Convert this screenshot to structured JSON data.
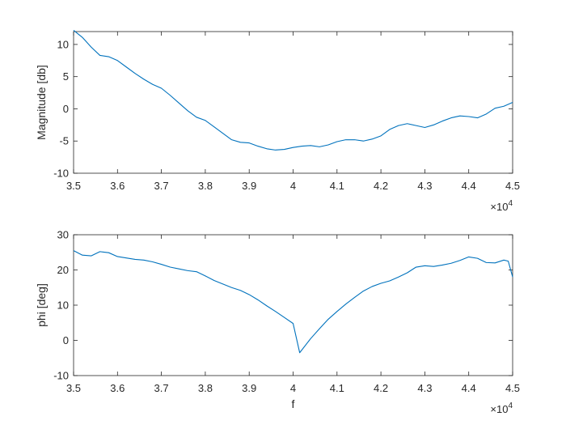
{
  "figure": {
    "background": "#ffffff",
    "axis_color": "#262626",
    "line_color": "#0072BD"
  },
  "chart_data": [
    {
      "type": "line",
      "xlabel": "",
      "ylabel": "Magnitude [db]",
      "xlim": [
        35000,
        45000
      ],
      "ylim": [
        -10,
        12
      ],
      "xticks": [
        35000,
        36000,
        37000,
        38000,
        39000,
        40000,
        41000,
        42000,
        43000,
        44000,
        45000
      ],
      "xtick_labels": [
        "3.5",
        "3.6",
        "3.7",
        "3.8",
        "3.9",
        "4",
        "4.1",
        "4.2",
        "4.3",
        "4.4",
        "4.5"
      ],
      "yticks": [
        -10,
        -5,
        0,
        5,
        10
      ],
      "ytick_labels": [
        "-10",
        "-5",
        "0",
        "5",
        "10"
      ],
      "x_exponent_label": "×10",
      "x_exponent_power": "4",
      "grid": false,
      "series": [
        {
          "x": [
            35000,
            35200,
            35400,
            35600,
            35800,
            36000,
            36200,
            36400,
            36600,
            36800,
            37000,
            37200,
            37400,
            37600,
            37800,
            38000,
            38200,
            38400,
            38600,
            38800,
            39000,
            39200,
            39400,
            39600,
            39800,
            40000,
            40200,
            40400,
            40600,
            40800,
            41000,
            41200,
            41400,
            41600,
            41800,
            42000,
            42200,
            42400,
            42600,
            42800,
            43000,
            43200,
            43400,
            43600,
            43800,
            44000,
            44200,
            44400,
            44600,
            44800,
            45000
          ],
          "values": [
            12.2,
            11.1,
            9.6,
            8.3,
            8.1,
            7.5,
            6.5,
            5.5,
            4.6,
            3.8,
            3.2,
            2.1,
            0.9,
            -0.3,
            -1.3,
            -1.8,
            -2.8,
            -3.8,
            -4.8,
            -5.2,
            -5.3,
            -5.8,
            -6.2,
            -6.4,
            -6.3,
            -6.0,
            -5.8,
            -5.7,
            -5.9,
            -5.6,
            -5.1,
            -4.8,
            -4.8,
            -5.0,
            -4.7,
            -4.2,
            -3.2,
            -2.6,
            -2.3,
            -2.6,
            -2.9,
            -2.5,
            -1.9,
            -1.4,
            -1.1,
            -1.2,
            -1.4,
            -0.8,
            0.1,
            0.4,
            1.0
          ]
        }
      ]
    },
    {
      "type": "line",
      "xlabel": "f",
      "ylabel": "phi [deg]",
      "xlim": [
        35000,
        45000
      ],
      "ylim": [
        -10,
        30
      ],
      "xticks": [
        35000,
        36000,
        37000,
        38000,
        39000,
        40000,
        41000,
        42000,
        43000,
        44000,
        45000
      ],
      "xtick_labels": [
        "3.5",
        "3.6",
        "3.7",
        "3.8",
        "3.9",
        "4",
        "4.1",
        "4.2",
        "4.3",
        "4.4",
        "4.5"
      ],
      "yticks": [
        -10,
        0,
        10,
        20,
        30
      ],
      "ytick_labels": [
        "-10",
        "0",
        "10",
        "20",
        "30"
      ],
      "x_exponent_label": "×10",
      "x_exponent_power": "4",
      "grid": false,
      "series": [
        {
          "x": [
            35000,
            35200,
            35400,
            35600,
            35800,
            36000,
            36200,
            36400,
            36600,
            36800,
            37000,
            37200,
            37400,
            37600,
            37800,
            38000,
            38200,
            38400,
            38600,
            38800,
            39000,
            39200,
            39400,
            39600,
            39800,
            40000,
            40150,
            40400,
            40600,
            40800,
            41000,
            41200,
            41400,
            41600,
            41800,
            42000,
            42200,
            42400,
            42600,
            42800,
            43000,
            43200,
            43400,
            43600,
            43800,
            44000,
            44200,
            44400,
            44600,
            44800,
            44900,
            45000
          ],
          "values": [
            25.5,
            24.2,
            24.0,
            25.2,
            24.9,
            23.8,
            23.4,
            23.0,
            22.8,
            22.3,
            21.6,
            20.8,
            20.3,
            19.8,
            19.5,
            18.3,
            17.0,
            16.0,
            15.0,
            14.2,
            13.0,
            11.5,
            9.8,
            8.2,
            6.5,
            4.8,
            -3.5,
            0.5,
            3.3,
            6.0,
            8.2,
            10.3,
            12.2,
            14.0,
            15.3,
            16.2,
            16.9,
            18.0,
            19.2,
            20.8,
            21.2,
            21.0,
            21.4,
            21.9,
            22.7,
            23.7,
            23.3,
            22.1,
            22.0,
            22.8,
            22.5,
            18.0
          ]
        }
      ]
    }
  ]
}
